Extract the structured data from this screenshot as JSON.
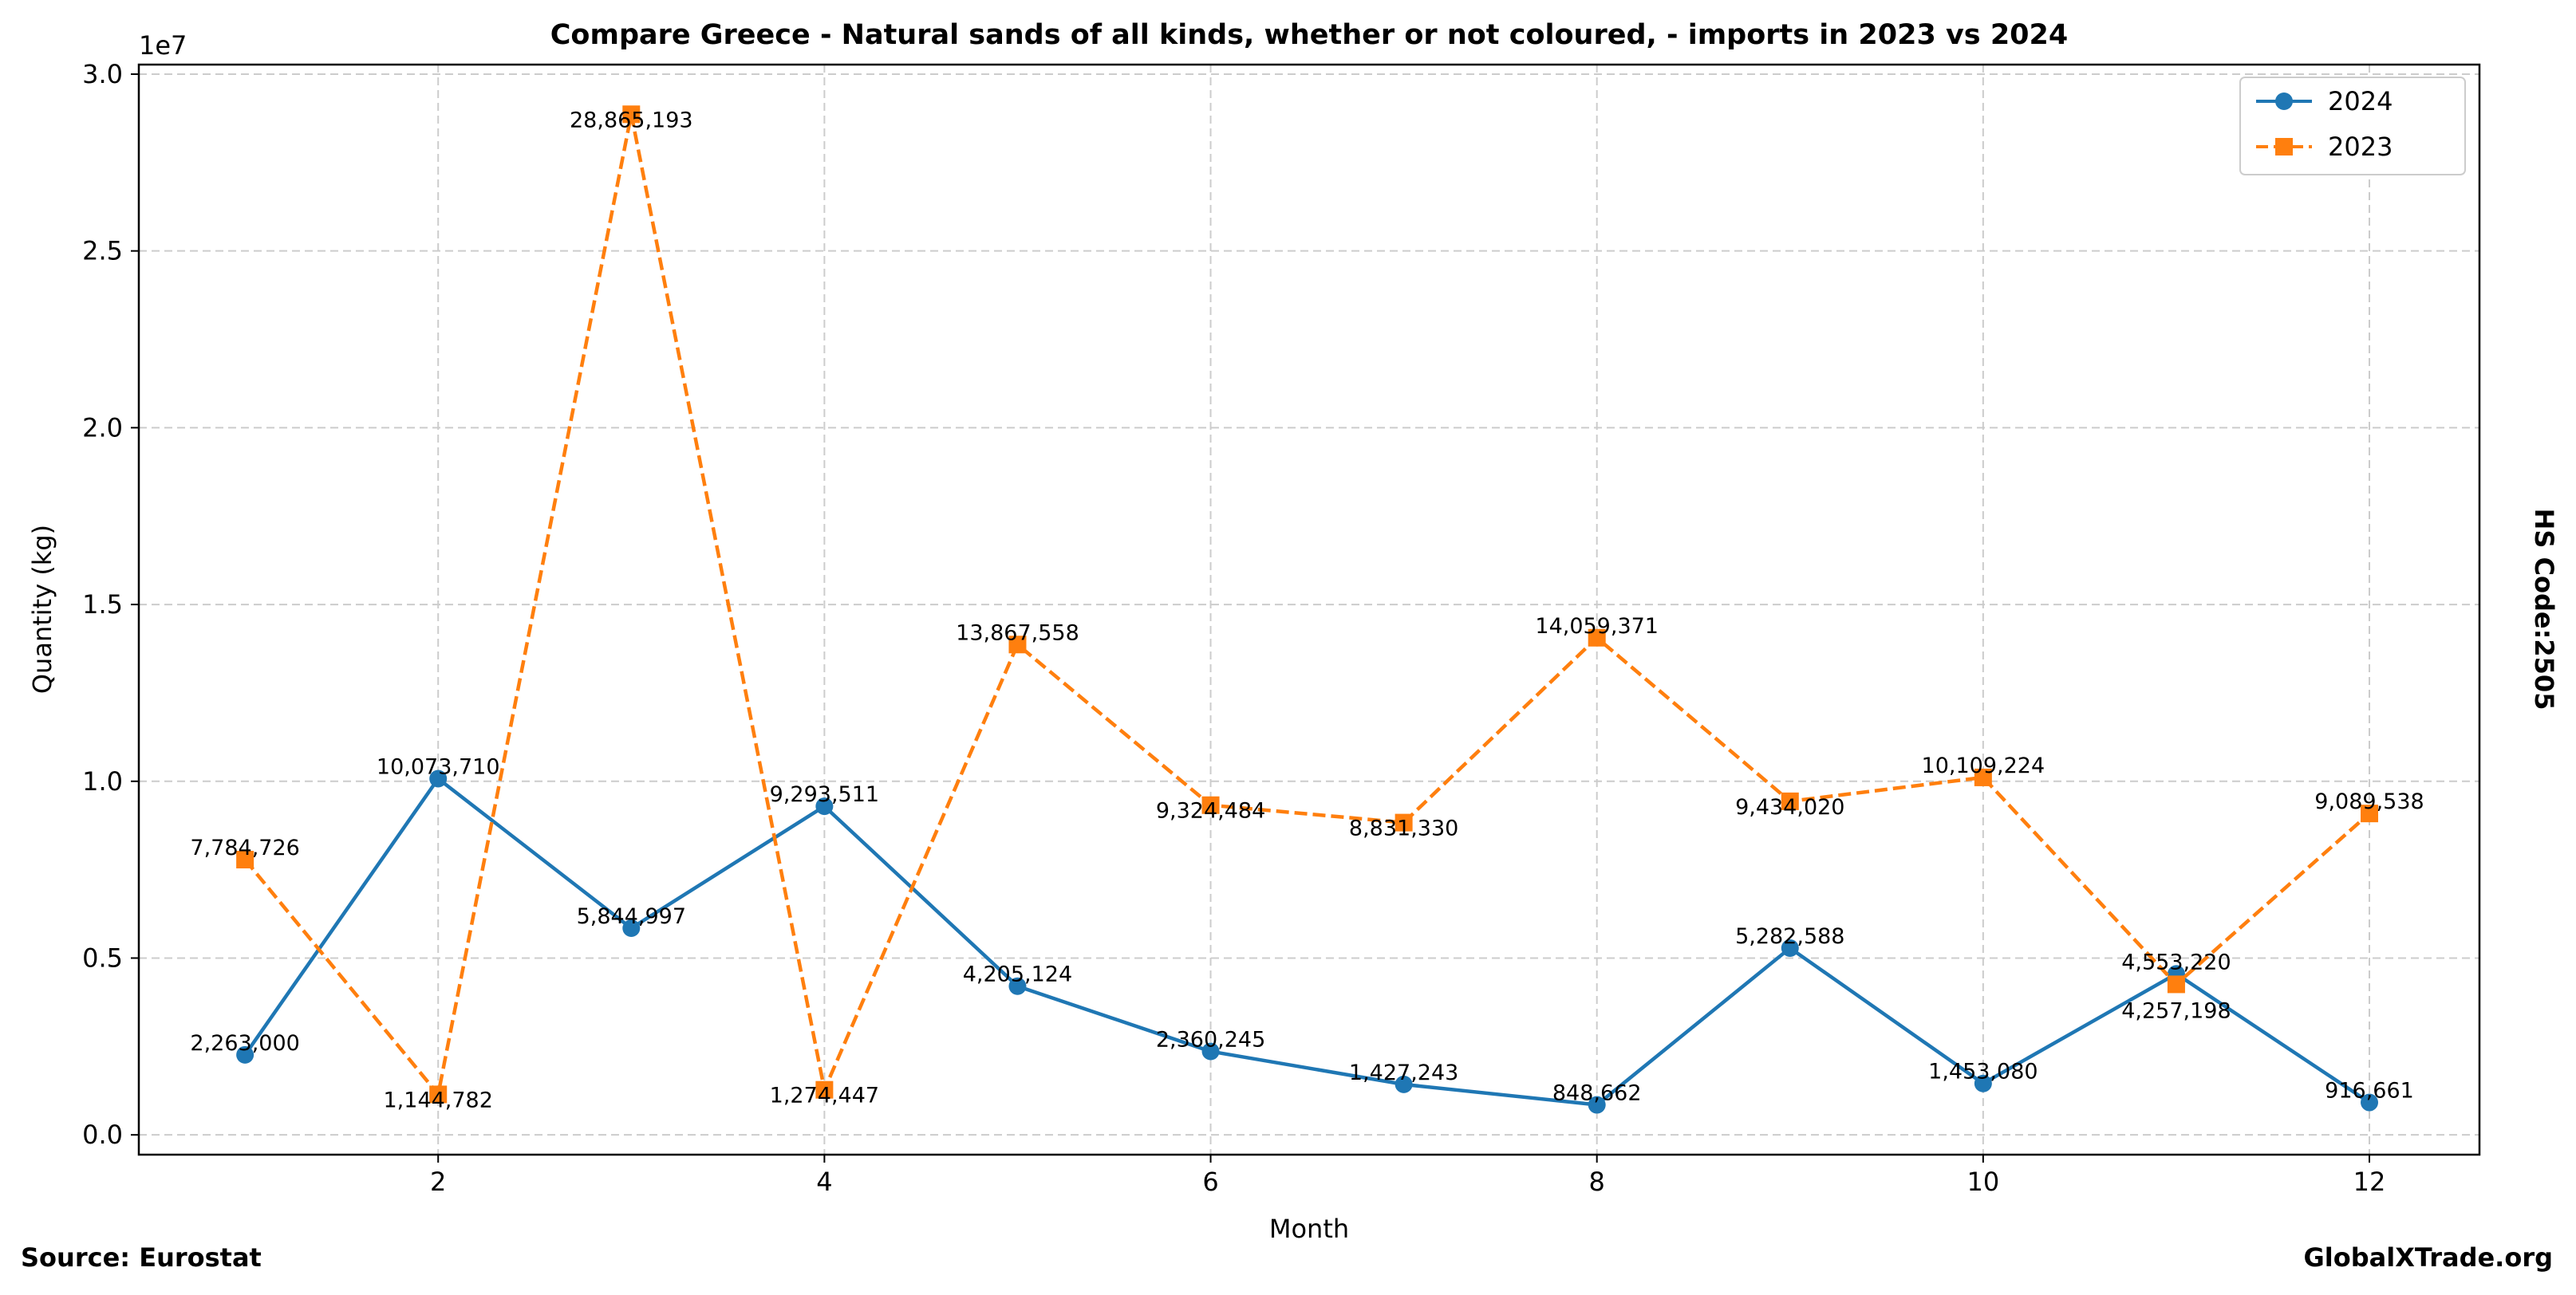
{
  "chart_data": {
    "type": "line",
    "title": "Compare Greece - Natural sands of all kinds, whether or not coloured, - imports in 2023 vs 2024",
    "xlabel": "Month",
    "ylabel": "Quantity (kg)",
    "y_offset_label": "1e7",
    "x": [
      1,
      2,
      3,
      4,
      5,
      6,
      7,
      8,
      9,
      10,
      11,
      12
    ],
    "xlim": [
      0.45,
      12.57
    ],
    "ylim": [
      -560000,
      30270000
    ],
    "xticks": [
      2,
      4,
      6,
      8,
      10,
      12
    ],
    "xtick_labels": [
      "2",
      "4",
      "6",
      "8",
      "10",
      "12"
    ],
    "yticks": [
      0,
      5000000,
      10000000,
      15000000,
      20000000,
      25000000,
      30000000
    ],
    "ytick_labels": [
      "0.0",
      "0.5",
      "1.0",
      "1.5",
      "2.0",
      "2.5",
      "3.0"
    ],
    "grid": true,
    "legend_position": "top-right",
    "series": [
      {
        "name": "2024",
        "color": "#1f77b4",
        "marker": "circle",
        "linestyle": "solid",
        "values": [
          2263000,
          10073710,
          5844997,
          9293511,
          4205124,
          2360245,
          1427243,
          848662,
          5282588,
          1453080,
          4553220,
          916661
        ],
        "labels": [
          "2,263,000",
          "10,073,710",
          "5,844,997",
          "9,293,511",
          "4,205,124",
          "2,360,245",
          "1,427,243",
          "848,662",
          "5,282,588",
          "1,453,080",
          "4,553,220",
          "916,661"
        ]
      },
      {
        "name": "2023",
        "color": "#ff7f0e",
        "marker": "square",
        "linestyle": "dashed",
        "values": [
          7784726,
          1144782,
          28865193,
          1274447,
          13867558,
          9324484,
          8831330,
          14059371,
          9434020,
          10109224,
          4257198,
          9089538
        ],
        "labels": [
          "7,784,726",
          "1,144,782",
          "28,865,193",
          "1,274,447",
          "13,867,558",
          "9,324,484",
          "8,831,330",
          "14,059,371",
          "9,434,020",
          "10,109,224",
          "4,257,198",
          "9,089,538"
        ]
      }
    ]
  },
  "side_label": "HS Code:2505",
  "source": "Source: Eurostat",
  "brand": "GlobalXTrade.org"
}
